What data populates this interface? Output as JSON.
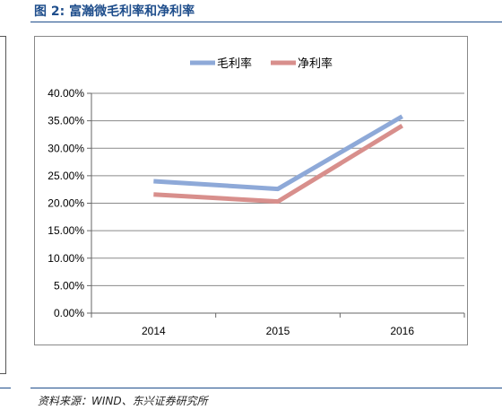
{
  "figure": {
    "title": "图 2: 富瀚微毛利率和净利率",
    "source": "资料来源：WIND、东兴证券研究所"
  },
  "chart_data": {
    "type": "line",
    "categories": [
      "2014",
      "2015",
      "2016"
    ],
    "series": [
      {
        "name": "毛利率",
        "values": [
          24.0,
          22.6,
          35.8
        ],
        "color": "#8ea9d8"
      },
      {
        "name": "净利率",
        "values": [
          21.6,
          20.3,
          34.1
        ],
        "color": "#d88f8c"
      }
    ],
    "ylim": [
      0,
      40
    ],
    "ytick_step": 5,
    "ytick_format": "percent_2dp",
    "legend_position": "top-center",
    "grid": "horizontal"
  }
}
